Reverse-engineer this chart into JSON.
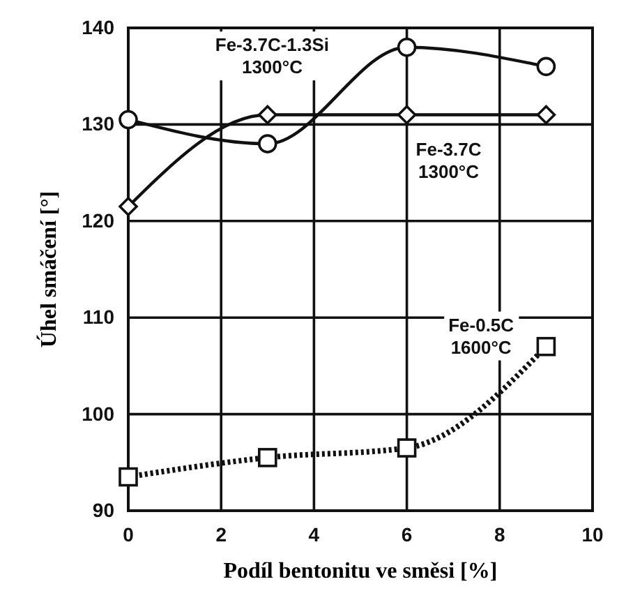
{
  "chart_data": {
    "type": "line",
    "xlabel": "Podíl bentonitu ve směsi [%]",
    "ylabel": "Úhel smáčení [°]",
    "x": [
      0,
      3,
      6,
      9
    ],
    "xlim": [
      0,
      10
    ],
    "xticks": [
      0,
      2,
      4,
      6,
      8,
      10
    ],
    "ylim": [
      90,
      140
    ],
    "yticks": [
      90,
      100,
      110,
      120,
      130,
      140
    ],
    "grid": true,
    "series": [
      {
        "name": "Fe-3.7C-1.3Si 1300°C",
        "color": "#111111",
        "values": [
          130.5,
          128,
          138,
          136
        ],
        "marker": "circle",
        "line_style": "solid"
      },
      {
        "name": "Fe-3.7C 1300°C",
        "color": "#111111",
        "values": [
          121.5,
          131,
          131,
          131
        ],
        "marker": "diamond",
        "line_style": "solid"
      },
      {
        "name": "Fe-0.5C 1600°C",
        "color": "#111111",
        "values": [
          93.5,
          95.5,
          96.5,
          107
        ],
        "marker": "square",
        "line_style": "dotted"
      }
    ]
  }
}
